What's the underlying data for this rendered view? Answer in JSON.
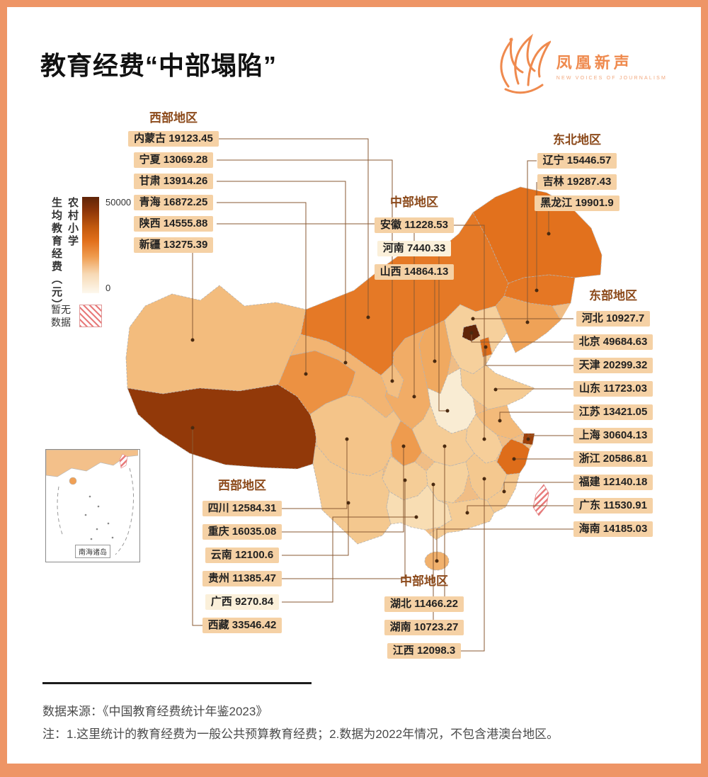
{
  "title": "教育经费“中部塌陷”",
  "logo": {
    "name": "凤凰新声",
    "subtitle": "NEW VOICES OF JOURNALISM"
  },
  "legend": {
    "axis_label_main": "生均教育经费（元）",
    "axis_label_sub": "农村小学",
    "max_label": "50000",
    "min_label": "0",
    "no_data_label": "暂无数据",
    "chip_color": "#f5d1a5",
    "chip_color_low": "#fbf0da",
    "frame_color": "#ee9566",
    "no_data_stripe_color": "#e87a7a"
  },
  "inset": {
    "label": "南海诸岛"
  },
  "footer": {
    "source": "数据来源：《中国教育经费统计年鉴2023》",
    "note": "注：1.这里统计的教育经费为一般公共预算教育经费；2.数据为2022年情况，不包含港澳台地区。"
  },
  "groups": [
    {
      "id": "west-top",
      "region": "西部地区",
      "items": [
        {
          "name": "内蒙古",
          "value": 19123.45
        },
        {
          "name": "宁夏",
          "value": 13069.28
        },
        {
          "name": "甘肃",
          "value": 13914.26
        },
        {
          "name": "青海",
          "value": 16872.25
        },
        {
          "name": "陕西",
          "value": 14555.88
        },
        {
          "name": "新疆",
          "value": 13275.39
        }
      ]
    },
    {
      "id": "central-top",
      "region": "中部地区",
      "items": [
        {
          "name": "安徽",
          "value": 11228.53
        },
        {
          "name": "河南",
          "value": 7440.33
        },
        {
          "name": "山西",
          "value": 14864.13
        }
      ]
    },
    {
      "id": "northeast",
      "region": "东北地区",
      "items": [
        {
          "name": "辽宁",
          "value": 15446.57
        },
        {
          "name": "吉林",
          "value": 19287.43
        },
        {
          "name": "黑龙江",
          "value": 19901.9
        }
      ]
    },
    {
      "id": "east",
      "region": "东部地区",
      "items": [
        {
          "name": "河北",
          "value": 10927.7
        },
        {
          "name": "北京",
          "value": 49684.63
        },
        {
          "name": "天津",
          "value": 20299.32
        },
        {
          "name": "山东",
          "value": 11723.03
        },
        {
          "name": "江苏",
          "value": 13421.05
        },
        {
          "name": "上海",
          "value": 30604.13
        },
        {
          "name": "浙江",
          "value": 20586.81
        },
        {
          "name": "福建",
          "value": 12140.18
        },
        {
          "name": "广东",
          "value": 11530.91
        },
        {
          "name": "海南",
          "value": 14185.03
        }
      ]
    },
    {
      "id": "west-bottom",
      "region": "西部地区",
      "items": [
        {
          "name": "四川",
          "value": 12584.31
        },
        {
          "name": "重庆",
          "value": 16035.08
        },
        {
          "name": "云南",
          "value": 12100.6
        },
        {
          "name": "贵州",
          "value": 11385.47
        },
        {
          "name": "广西",
          "value": 9270.84
        },
        {
          "name": "西藏",
          "value": 33546.42
        }
      ]
    },
    {
      "id": "central-bottom",
      "region": "中部地区",
      "items": [
        {
          "name": "湖北",
          "value": 11466.22
        },
        {
          "name": "湖南",
          "value": 10723.27
        },
        {
          "name": "江西",
          "value": 12098.3
        }
      ]
    }
  ],
  "chart_data": {
    "type": "heatmap",
    "subtype": "choropleth-map-of-china",
    "title": "教育经费“中部塌陷”",
    "measure": "生均教育经费（元） 农村小学",
    "unit": "元",
    "range": [
      0,
      50000
    ],
    "legend_no_data": "暂无数据",
    "regions": [
      {
        "region": "西部地区",
        "province": "内蒙古",
        "value": 19123.45
      },
      {
        "region": "西部地区",
        "province": "宁夏",
        "value": 13069.28
      },
      {
        "region": "西部地区",
        "province": "甘肃",
        "value": 13914.26
      },
      {
        "region": "西部地区",
        "province": "青海",
        "value": 16872.25
      },
      {
        "region": "西部地区",
        "province": "陕西",
        "value": 14555.88
      },
      {
        "region": "西部地区",
        "province": "新疆",
        "value": 13275.39
      },
      {
        "region": "中部地区",
        "province": "安徽",
        "value": 11228.53
      },
      {
        "region": "中部地区",
        "province": "河南",
        "value": 7440.33
      },
      {
        "region": "中部地区",
        "province": "山西",
        "value": 14864.13
      },
      {
        "region": "东北地区",
        "province": "辽宁",
        "value": 15446.57
      },
      {
        "region": "东北地区",
        "province": "吉林",
        "value": 19287.43
      },
      {
        "region": "东北地区",
        "province": "黑龙江",
        "value": 19901.9
      },
      {
        "region": "东部地区",
        "province": "河北",
        "value": 10927.7
      },
      {
        "region": "东部地区",
        "province": "北京",
        "value": 49684.63
      },
      {
        "region": "东部地区",
        "province": "天津",
        "value": 20299.32
      },
      {
        "region": "东部地区",
        "province": "山东",
        "value": 11723.03
      },
      {
        "region": "东部地区",
        "province": "江苏",
        "value": 13421.05
      },
      {
        "region": "东部地区",
        "province": "上海",
        "value": 30604.13
      },
      {
        "region": "东部地区",
        "province": "浙江",
        "value": 20586.81
      },
      {
        "region": "东部地区",
        "province": "福建",
        "value": 12140.18
      },
      {
        "region": "东部地区",
        "province": "广东",
        "value": 11530.91
      },
      {
        "region": "东部地区",
        "province": "海南",
        "value": 14185.03
      },
      {
        "region": "西部地区",
        "province": "四川",
        "value": 12584.31
      },
      {
        "region": "西部地区",
        "province": "重庆",
        "value": 16035.08
      },
      {
        "region": "西部地区",
        "province": "云南",
        "value": 12100.6
      },
      {
        "region": "西部地区",
        "province": "贵州",
        "value": 11385.47
      },
      {
        "region": "西部地区",
        "province": "广西",
        "value": 9270.84
      },
      {
        "region": "西部地区",
        "province": "西藏",
        "value": 33546.42
      },
      {
        "region": "中部地区",
        "province": "湖北",
        "value": 11466.22
      },
      {
        "region": "中部地区",
        "province": "湖南",
        "value": 10723.27
      },
      {
        "region": "中部地区",
        "province": "江西",
        "value": 12098.3
      }
    ],
    "no_data_regions": [
      "台湾"
    ]
  }
}
